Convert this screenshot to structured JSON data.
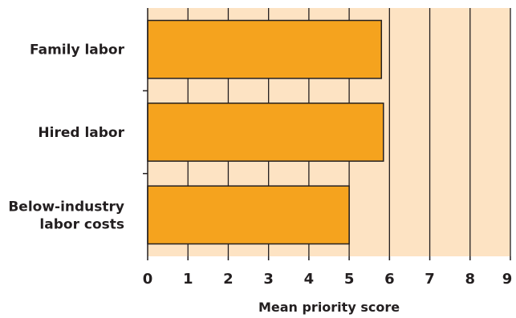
{
  "chart_data": {
    "type": "bar",
    "orientation": "horizontal",
    "categories": [
      [
        "Family labor"
      ],
      [
        "Hired labor"
      ],
      [
        "Below-industry",
        "labor costs"
      ]
    ],
    "values": [
      5.8,
      5.85,
      5.0
    ],
    "title": "",
    "xlabel": "Mean priority score",
    "ylabel": "",
    "xlim": [
      0,
      9
    ],
    "xticks": [
      "0",
      "1",
      "2",
      "3",
      "4",
      "5",
      "6",
      "7",
      "8",
      "9"
    ],
    "grid": true,
    "colors": {
      "bar": "#f5a31e",
      "bar_outline": "#231f20",
      "plot_background": "#fde3c3",
      "grid": "#231f20",
      "text": "#231f20"
    }
  }
}
